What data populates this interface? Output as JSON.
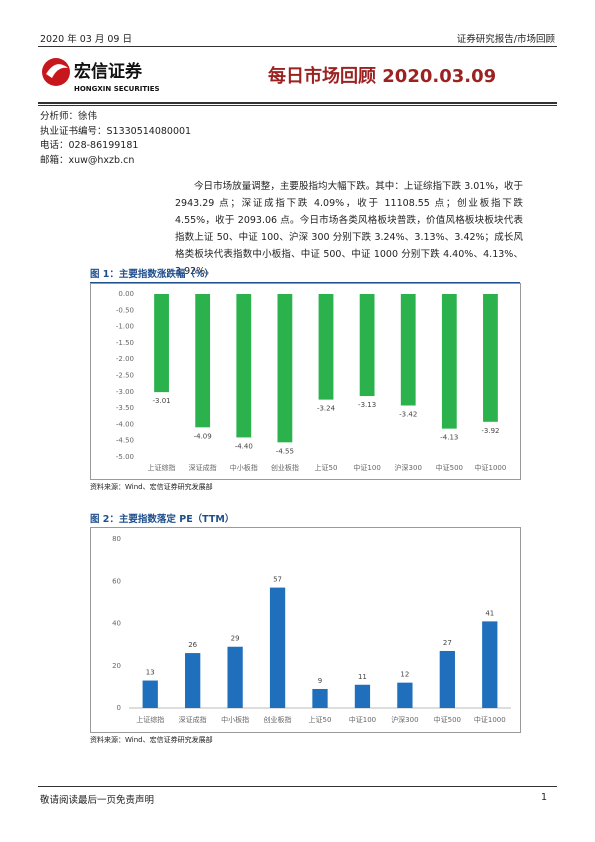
{
  "header": {
    "date": "2020 年 03 月 09 日",
    "category": "证券研究报告/市场回顾",
    "logo_cn": "宏信证券",
    "logo_en": "HONGXIN SECURITIES",
    "title": "每日市场回顾 2020.03.09"
  },
  "analyst": [
    "分析师：徐伟",
    "执业证书编号：S1330514080001",
    "电话：028-86199181",
    "邮箱：xuw@hxzb.cn"
  ],
  "body": "今日市场放量调整，主要股指均大幅下跌。其中：上证综指下跌 3.01%，收于 2943.29 点；深证成指下跌 4.09%，收于 11108.55 点；创业板指下跌 4.55%，收于 2093.06 点。今日市场各类风格板块普跌，价值风格板块板块代表指数上证 50、中证 100、沪深 300 分别下跌 3.24%、3.13%、3.42%；成长风格类板块代表指数中小板指、中证 500、中证 1000 分别下跌 4.40%、4.13%、3.92%。",
  "chart_data": [
    {
      "type": "bar",
      "title": "图 1：主要指数涨跌幅（%）",
      "source": "资料来源：Wind、宏信证券研究发展部",
      "categories": [
        "上证综指",
        "深证成指",
        "中小板指",
        "创业板指",
        "上证50",
        "中证100",
        "沪深300",
        "中证500",
        "中证1000"
      ],
      "values": [
        -3.01,
        -4.09,
        -4.4,
        -4.55,
        -3.24,
        -3.13,
        -3.42,
        -4.13,
        -3.92
      ],
      "value_labels": [
        "-3.01",
        "-4.09",
        "-4.40",
        "-4.55",
        "-3.24",
        "-3.13",
        "-3.42",
        "-4.13",
        "-3.92"
      ],
      "color": "#2bb24c",
      "ylim": [
        -5,
        0
      ],
      "yticks": [
        {
          "value": 0,
          "label": "0.00"
        },
        {
          "value": -0.5,
          "label": "-0.50"
        },
        {
          "value": -1,
          "label": "-1.00"
        },
        {
          "value": -1.5,
          "label": "-1.50"
        },
        {
          "value": -2,
          "label": "-2.00"
        },
        {
          "value": -2.5,
          "label": "-2.50"
        },
        {
          "value": -3,
          "label": "-3.00"
        },
        {
          "value": -3.5,
          "label": "-3.50"
        },
        {
          "value": -4,
          "label": "-4.00"
        },
        {
          "value": -4.5,
          "label": "-4.50"
        },
        {
          "value": -5,
          "label": "-5.00"
        }
      ],
      "grid": false
    },
    {
      "type": "bar",
      "title": "图 2：主要指数落定 PE（TTM）",
      "source": "资料来源：Wind、宏信证券研究发展部",
      "categories": [
        "上证综指",
        "深证成指",
        "中小板指",
        "创业板指",
        "上证50",
        "中证100",
        "沪深300",
        "中证500",
        "中证1000"
      ],
      "values": [
        13,
        26,
        29,
        57,
        9,
        11,
        12,
        27,
        41
      ],
      "color": "#1f6fbd",
      "ylim": [
        0,
        80
      ],
      "yticks": [
        0,
        20,
        40,
        60,
        80
      ],
      "grid": false
    }
  ],
  "footer": {
    "disclaimer": "敬请阅读最后一页免责声明",
    "page": "1"
  }
}
